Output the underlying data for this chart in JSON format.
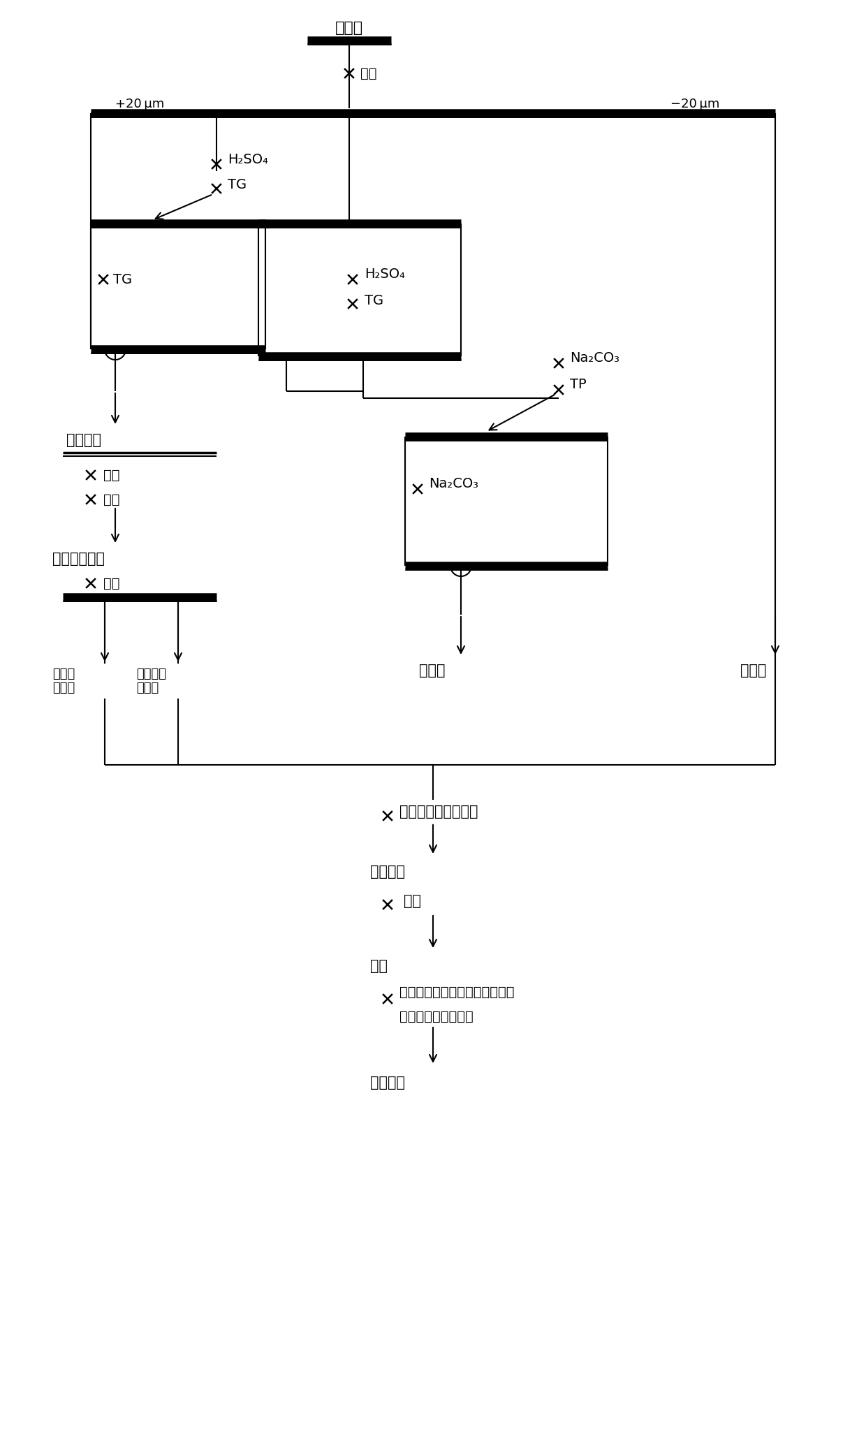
{
  "bg_color": "#ffffff",
  "figsize": [
    12.4,
    20.83
  ],
  "dpi": 100,
  "linfengkuang": "磷尾矿",
  "shuixi": "水析",
  "plus20": "+20 μm",
  "minus20": "−20 μm",
  "H2SO4": "H₂SO₄",
  "TG": "TG",
  "Na2CO3": "Na₂CO₃",
  "TP": "TP",
  "gaimei_cp": "馒镌产品",
  "duanshao": "锻烧",
  "xiaohua": "消化",
  "gaimei_qyh": "馒镌氮氧化物",
  "jingxuan": "精选",
  "youzhi": "优质馒\n镌组分",
  "didichun": "低纯度馒\n镌组分",
  "lin_cp": "磷产品",
  "gui_cp": "硅产品",
  "gaosuhun": "高速混合改性机混匀",
  "junzhi": "均质物料",
  "duanshao2": "锻烧",
  "shuliao": "熟料",
  "lusuanna": "铝酸钔、矿粉、电石渣、减水剂",
  "gaixing": "等改性剂（添加剂）",
  "jiaonin": "胶凝材料"
}
